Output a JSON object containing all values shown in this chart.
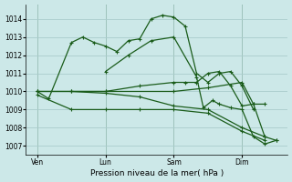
{
  "bg_color": "#cce8e8",
  "grid_color": "#aacccc",
  "line_color": "#1a5c1a",
  "xlabel": "Pression niveau de la mer( hPa )",
  "ylim": [
    1006.5,
    1014.8
  ],
  "yticks": [
    1007,
    1008,
    1009,
    1010,
    1011,
    1012,
    1013,
    1014
  ],
  "xtick_labels": [
    "Ven",
    "Lun",
    "Sam",
    "Dim"
  ],
  "xtick_pos": [
    0,
    3,
    6,
    9
  ],
  "lines": [
    {
      "x": [
        0,
        0.5,
        1.5,
        2.0,
        2.5,
        3.0,
        3.5,
        4.0,
        4.5,
        5.0,
        5.5,
        6.0,
        6.5,
        7.0,
        7.5,
        8.0,
        8.5,
        9.0,
        9.5
      ],
      "y": [
        1010,
        1009.6,
        1012.7,
        1013.0,
        1012.7,
        1012.5,
        1012.2,
        1012.8,
        1012.9,
        1014.0,
        1014.2,
        1014.1,
        1013.6,
        1011.0,
        1010.5,
        1011.0,
        1011.1,
        1010.3,
        1009.0
      ]
    },
    {
      "x": [
        0,
        1.5,
        3.0,
        4.5,
        6.0,
        7.5,
        9.0,
        10.0
      ],
      "y": [
        1010.0,
        1010.0,
        1009.9,
        1009.7,
        1009.2,
        1009.0,
        1008.0,
        1007.5
      ]
    },
    {
      "x": [
        0,
        1.5,
        3.0,
        4.5,
        6.0,
        7.5,
        9.0,
        10.0
      ],
      "y": [
        1009.8,
        1009.0,
        1009.0,
        1009.0,
        1009.0,
        1008.8,
        1007.8,
        1007.3
      ]
    },
    {
      "x": [
        0,
        3.0,
        6.0,
        7.5,
        9.0,
        9.5,
        10.0
      ],
      "y": [
        1010.0,
        1010.0,
        1010.0,
        1010.2,
        1010.5,
        1009.3,
        1009.3
      ]
    },
    {
      "x": [
        1.5,
        3.0,
        4.5,
        6.0,
        6.5,
        7.0,
        7.5,
        8.0,
        8.5,
        9.0,
        9.5,
        10.0,
        10.5
      ],
      "y": [
        1010.0,
        1010.0,
        1010.3,
        1010.5,
        1010.5,
        1010.5,
        1011.0,
        1011.1,
        1010.3,
        1009.2,
        1009.3,
        1007.5,
        1007.3
      ]
    },
    {
      "x": [
        3.0,
        4.0,
        5.0,
        6.0,
        7.0,
        7.3,
        7.7,
        8.0,
        8.5,
        9.0,
        9.5,
        10.0,
        10.5
      ],
      "y": [
        1011.1,
        1012.0,
        1012.8,
        1013.0,
        1010.8,
        1009.1,
        1009.5,
        1009.3,
        1009.1,
        1009.0,
        1007.5,
        1007.1,
        1007.3
      ]
    }
  ]
}
